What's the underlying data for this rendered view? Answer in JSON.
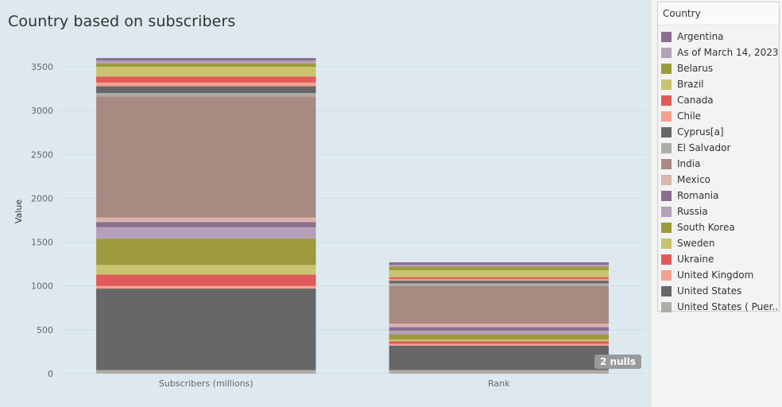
{
  "title": "Country based on subscribers",
  "legend": {
    "title": "Country",
    "items": [
      {
        "label": "Argentina",
        "color": "#8b6f8e"
      },
      {
        "label": "As of March 14, 2023..",
        "color": "#b4a0b8"
      },
      {
        "label": "Belarus",
        "color": "#9d9a3d"
      },
      {
        "label": "Brazil",
        "color": "#c8c46f"
      },
      {
        "label": "Canada",
        "color": "#e05a5a"
      },
      {
        "label": "Chile",
        "color": "#f5a090"
      },
      {
        "label": "Cyprus[a]",
        "color": "#676767"
      },
      {
        "label": "El Salvador",
        "color": "#b0aca8"
      },
      {
        "label": "India",
        "color": "#a88a82"
      },
      {
        "label": "Mexico",
        "color": "#dcb4ac"
      },
      {
        "label": "Romania",
        "color": "#8b6f8e"
      },
      {
        "label": "Russia",
        "color": "#b4a0b8"
      },
      {
        "label": "South Korea",
        "color": "#9d9a3d"
      },
      {
        "label": "Sweden",
        "color": "#c8c46f"
      },
      {
        "label": "Ukraine",
        "color": "#e05a5a"
      },
      {
        "label": "United Kingdom",
        "color": "#f5a090"
      },
      {
        "label": "United States",
        "color": "#676767"
      },
      {
        "label": "United States ( Puer..",
        "color": "#b0aca8"
      }
    ]
  },
  "nulls_badge": "2 nulls",
  "chart_data": {
    "type": "bar",
    "stacked": true,
    "categories": [
      "Subscribers (millions)",
      "Rank"
    ],
    "ylabel": "Value",
    "xlabel": "",
    "ylim": [
      0,
      3700
    ],
    "yticks": [
      0,
      500,
      1000,
      1500,
      2000,
      2500,
      3000,
      3500
    ],
    "grid": true,
    "legend_position": "right",
    "stacks": [
      {
        "category": "Subscribers (millions)",
        "segments": [
          {
            "country": "United States ( Puer..",
            "value": 40
          },
          {
            "country": "United States",
            "value": 930
          },
          {
            "country": "United Kingdom",
            "value": 30
          },
          {
            "country": "Ukraine",
            "value": 130
          },
          {
            "country": "Sweden",
            "value": 110
          },
          {
            "country": "South Korea",
            "value": 300
          },
          {
            "country": "Russia",
            "value": 130
          },
          {
            "country": "Romania",
            "value": 60
          },
          {
            "country": "Mexico",
            "value": 50
          },
          {
            "country": "India",
            "value": 1380
          },
          {
            "country": "El Salvador",
            "value": 40
          },
          {
            "country": "Cyprus[a]",
            "value": 80
          },
          {
            "country": "Chile",
            "value": 40
          },
          {
            "country": "Canada",
            "value": 70
          },
          {
            "country": "Brazil",
            "value": 110
          },
          {
            "country": "Belarus",
            "value": 40
          },
          {
            "country": "As of March 14, 2023..",
            "value": 30
          },
          {
            "country": "Argentina",
            "value": 30
          }
        ]
      },
      {
        "category": "Rank",
        "segments": [
          {
            "country": "United States ( Puer..",
            "value": 40
          },
          {
            "country": "United States",
            "value": 280
          },
          {
            "country": "United Kingdom",
            "value": 20
          },
          {
            "country": "Ukraine",
            "value": 30
          },
          {
            "country": "Sweden",
            "value": 20
          },
          {
            "country": "South Korea",
            "value": 60
          },
          {
            "country": "Russia",
            "value": 40
          },
          {
            "country": "Romania",
            "value": 40
          },
          {
            "country": "Mexico",
            "value": 40
          },
          {
            "country": "India",
            "value": 430
          },
          {
            "country": "El Salvador",
            "value": 30
          },
          {
            "country": "Cyprus[a]",
            "value": 30
          },
          {
            "country": "Chile",
            "value": 20
          },
          {
            "country": "Canada",
            "value": 20
          },
          {
            "country": "Brazil",
            "value": 80
          },
          {
            "country": "Belarus",
            "value": 40
          },
          {
            "country": "As of March 14, 2023..",
            "value": 20
          },
          {
            "country": "Argentina",
            "value": 30
          }
        ]
      }
    ]
  }
}
